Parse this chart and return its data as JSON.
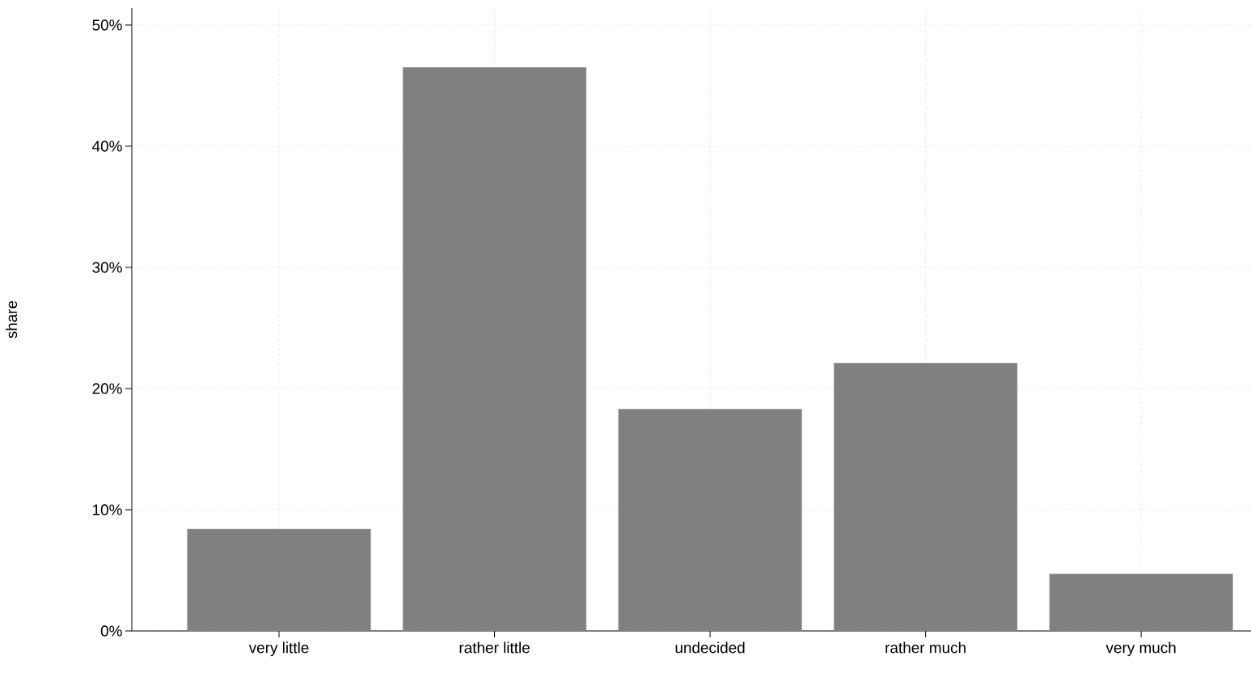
{
  "chart_data": {
    "type": "bar",
    "ylabel": "share",
    "categories": [
      "very little",
      "rather little",
      "undecided",
      "rather much",
      "very much"
    ],
    "values": [
      8.4,
      46.5,
      18.3,
      22.1,
      4.7
    ],
    "color": "#808080",
    "ylim": [
      0,
      51.4
    ],
    "yticks": [
      {
        "value": 0,
        "label": "0%"
      },
      {
        "value": 10,
        "label": "10%"
      },
      {
        "value": 20,
        "label": "20%"
      },
      {
        "value": 30,
        "label": "30%"
      },
      {
        "value": 40,
        "label": "40%"
      },
      {
        "value": 50,
        "label": "50%"
      }
    ],
    "grid": true
  }
}
